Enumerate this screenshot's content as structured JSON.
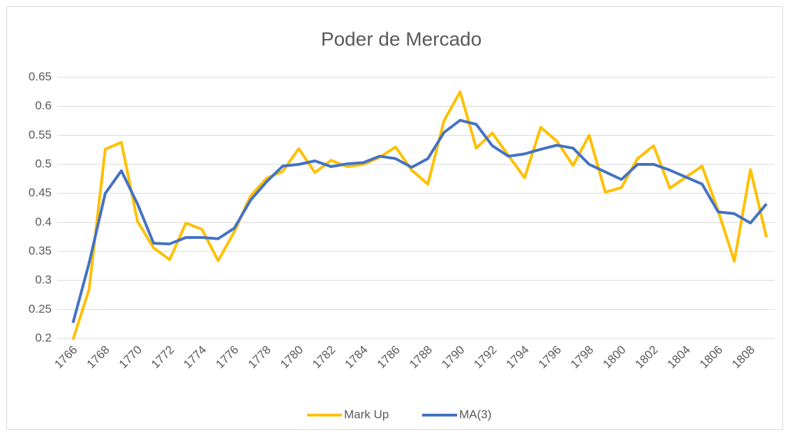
{
  "chart_data": {
    "type": "line",
    "title": "Poder de Mercado",
    "categories": [
      "1766",
      null,
      "1768",
      null,
      "1770",
      null,
      "1772",
      null,
      "1774",
      null,
      "1776",
      null,
      "1778",
      null,
      "1780",
      null,
      "1782",
      null,
      "1784",
      null,
      "1786",
      null,
      "1788",
      null,
      "1790",
      null,
      "1792",
      null,
      "1794",
      null,
      "1796",
      null,
      "1798",
      null,
      "1800",
      null,
      "1802",
      null,
      "1804",
      null,
      "1806",
      null,
      "1808",
      null
    ],
    "series": [
      {
        "name": "Mark Up",
        "color": "#FFC000",
        "values": [
          0.198,
          0.285,
          0.526,
          0.538,
          0.402,
          0.356,
          0.336,
          0.399,
          0.388,
          0.334,
          0.384,
          0.445,
          0.476,
          0.488,
          0.527,
          0.486,
          0.507,
          0.496,
          0.5,
          0.512,
          0.53,
          0.49,
          0.466,
          0.575,
          0.625,
          0.528,
          0.554,
          0.515,
          0.477,
          0.564,
          0.54,
          0.498,
          0.55,
          0.452,
          0.46,
          0.51,
          0.532,
          0.459,
          0.478,
          0.497,
          0.42,
          0.333,
          0.491,
          0.374
        ]
      },
      {
        "name": "MA(3)",
        "color": "#4472C4",
        "values": [
          0.227,
          0.33,
          0.45,
          0.489,
          0.432,
          0.364,
          0.363,
          0.374,
          0.374,
          0.372,
          0.39,
          0.438,
          0.47,
          0.497,
          0.5,
          0.506,
          0.496,
          0.501,
          0.503,
          0.514,
          0.51,
          0.495,
          0.51,
          0.555,
          0.576,
          0.569,
          0.532,
          0.514,
          0.518,
          0.526,
          0.533,
          0.528,
          0.5,
          0.487,
          0.474,
          0.5,
          0.5,
          0.49,
          0.478,
          0.466,
          0.418,
          0.415,
          0.399,
          0.432
        ]
      }
    ],
    "ylim": [
      0.2,
      0.65
    ],
    "yticks": [
      0.2,
      0.25,
      0.3,
      0.35,
      0.4,
      0.45,
      0.5,
      0.55,
      0.6,
      0.65
    ],
    "grid": true,
    "legend": "bottom"
  }
}
